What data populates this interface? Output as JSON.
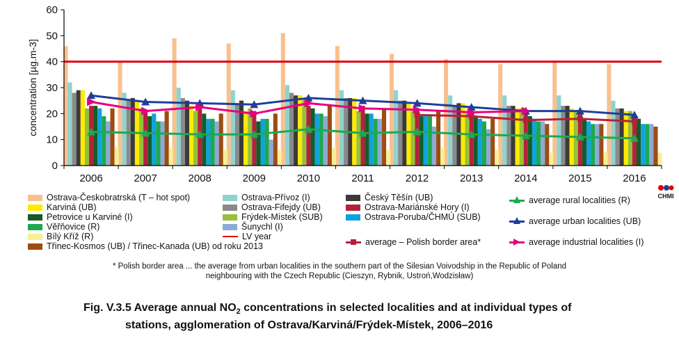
{
  "chart_data": {
    "type": "bar",
    "categories": [
      "2006",
      "2007",
      "2008",
      "2009",
      "2010",
      "2011",
      "2012",
      "2013",
      "2014",
      "2015",
      "2016"
    ],
    "ylabel": "concentration [µg.m-3]",
    "ylim": [
      0,
      60
    ],
    "yticks": [
      0,
      10,
      20,
      30,
      40,
      50,
      60
    ],
    "grid": false,
    "bar_series": [
      {
        "name": "Ostrava-Českobratrská (T – hot spot)",
        "color": "#f9c08f",
        "values": [
          46,
          40,
          49,
          47,
          51,
          46,
          43,
          41,
          39,
          40,
          39
        ]
      },
      {
        "name": "Ostrava-Přívoz (I)",
        "color": "#8fd3d0",
        "values": [
          32,
          28,
          30,
          29,
          31,
          29,
          29,
          27,
          27,
          27,
          25
        ]
      },
      {
        "name": "Ostrava-Fifejdy (UB)",
        "color": "#8a8a8a",
        "values": [
          28,
          25,
          26,
          24,
          28,
          26,
          25,
          23,
          23,
          23,
          22
        ]
      },
      {
        "name": "Český Těšín (UB)",
        "color": "#3a3a3a",
        "values": [
          29,
          26,
          25,
          25,
          27,
          26,
          25,
          24,
          23,
          23,
          22
        ]
      },
      {
        "name": "Karviná (UB)",
        "color": "#ffea00",
        "values": [
          29,
          25,
          23,
          21,
          27,
          26,
          24,
          24,
          22,
          22,
          21
        ]
      },
      {
        "name": "Frýdek-Místek (SUB)",
        "color": "#94c13c",
        "values": [
          22,
          22,
          21,
          22,
          26,
          21,
          21,
          20,
          22,
          21,
          21
        ]
      },
      {
        "name": "Ostrava-Mariánské Hory (I)",
        "color": "#b5213d",
        "values": [
          23,
          21,
          22,
          21,
          23,
          23,
          22,
          21,
          20,
          20,
          19
        ]
      },
      {
        "name": "Petrovice u Karviné (I)",
        "color": "#175c26",
        "values": [
          23,
          19,
          20,
          17,
          22,
          20,
          19,
          19,
          19,
          18,
          18
        ]
      },
      {
        "name": "Ostrava-Poruba/ČHMÚ (SUB)",
        "color": "#0fa2e0",
        "values": [
          22,
          20,
          18,
          18,
          20,
          20,
          19,
          18,
          18,
          17,
          16
        ]
      },
      {
        "name": "Věřňovice (R)",
        "color": "#1fa84f",
        "values": [
          19,
          17,
          18,
          18,
          20,
          18,
          19,
          17,
          17,
          16,
          16
        ]
      },
      {
        "name": "Šunychl (I)",
        "color": "#8ea9d8",
        "values": [
          17,
          17,
          17,
          10,
          19,
          18,
          15,
          14,
          17,
          16,
          16
        ]
      },
      {
        "name": "Třinec-Kosmos (UB) / Třinec-Kanada (UB) od roku 2013",
        "color": "#9c4d12",
        "values": [
          22,
          21,
          20,
          20,
          23,
          22,
          21,
          18,
          16,
          16,
          15
        ]
      },
      {
        "name": "Bílý Kříž (R)",
        "color": "#f8ee96",
        "values": [
          7,
          7,
          6,
          6,
          7,
          6,
          7,
          6,
          5,
          5,
          5
        ]
      }
    ],
    "line_series": [
      {
        "name": "average rural localities (R)",
        "color": "#1fa84f",
        "values": [
          13,
          12.5,
          12,
          12,
          14,
          12.5,
          13,
          12,
          11.5,
          11,
          10.5
        ]
      },
      {
        "name": "average urban localities (UB)",
        "color": "#1f3e99",
        "values": [
          27,
          24.5,
          24,
          23.5,
          26,
          25,
          24,
          22.5,
          21,
          21,
          19.5
        ]
      },
      {
        "name": "average – Polish border area*",
        "color": "#b5213d",
        "values": [
          null,
          null,
          null,
          null,
          null,
          null,
          19.5,
          19,
          17.5,
          18,
          17
        ]
      },
      {
        "name": "average industrial localities (I)",
        "color": "#e6007e",
        "values": [
          24.5,
          21,
          22.5,
          20,
          24,
          22,
          21.5,
          20.5,
          21,
          null,
          null
        ]
      }
    ],
    "lv_series": {
      "name": "LV year",
      "color": "#e0000f",
      "value": 40
    }
  },
  "note": {
    "line1": "* Polish border area ... the average from urban localities in the southern part of the Silesian Voivodship in the Republic of Poland",
    "line2": "neighbouring with the Czech Republic (Cieszyn, Rybnik, Ustroń,Wodzisław)"
  },
  "caption": {
    "prefix": "Fig. V.3.5  Average annual NO",
    "sub": "2",
    "rest": " concentrations in selected localities and at individual types of",
    "line2": "stations, agglomeration of Ostrava/Karviná/Frýdek-Místek, 2006–2016"
  },
  "logo": {
    "text": "CHMI"
  }
}
